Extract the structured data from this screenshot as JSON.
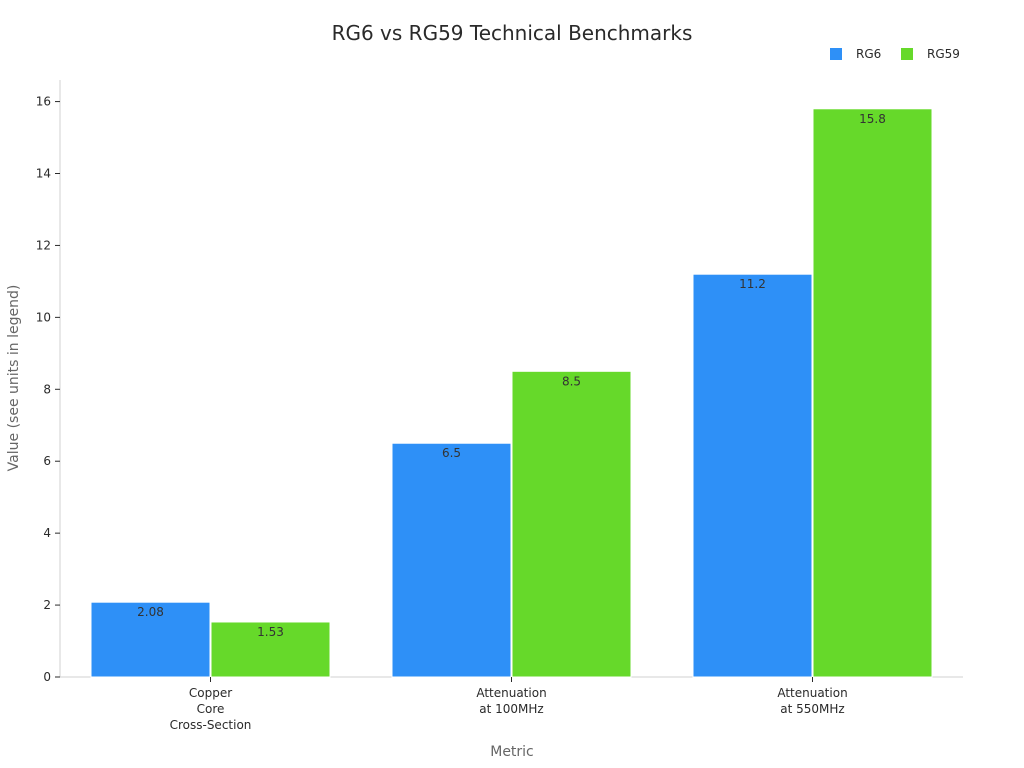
{
  "chart_data": {
    "type": "bar",
    "title": "RG6 vs RG59 Technical Benchmarks",
    "xlabel": "Metric",
    "ylabel": "Value (see units in legend)",
    "categories": [
      [
        "Copper",
        "Core",
        "Cross-Section"
      ],
      [
        "Attenuation",
        "at 100MHz"
      ],
      [
        "Attenuation",
        "at 550MHz"
      ]
    ],
    "series": [
      {
        "name": "RG6",
        "color": "#2e90f7",
        "values": [
          2.08,
          6.5,
          11.2
        ]
      },
      {
        "name": "RG59",
        "color": "#66d92a",
        "values": [
          1.53,
          8.5,
          15.8
        ]
      }
    ],
    "ylim": [
      0,
      16.6
    ],
    "yticks": [
      0,
      2,
      4,
      6,
      8,
      10,
      12,
      14,
      16
    ],
    "grid": false,
    "legend": "top-right"
  }
}
